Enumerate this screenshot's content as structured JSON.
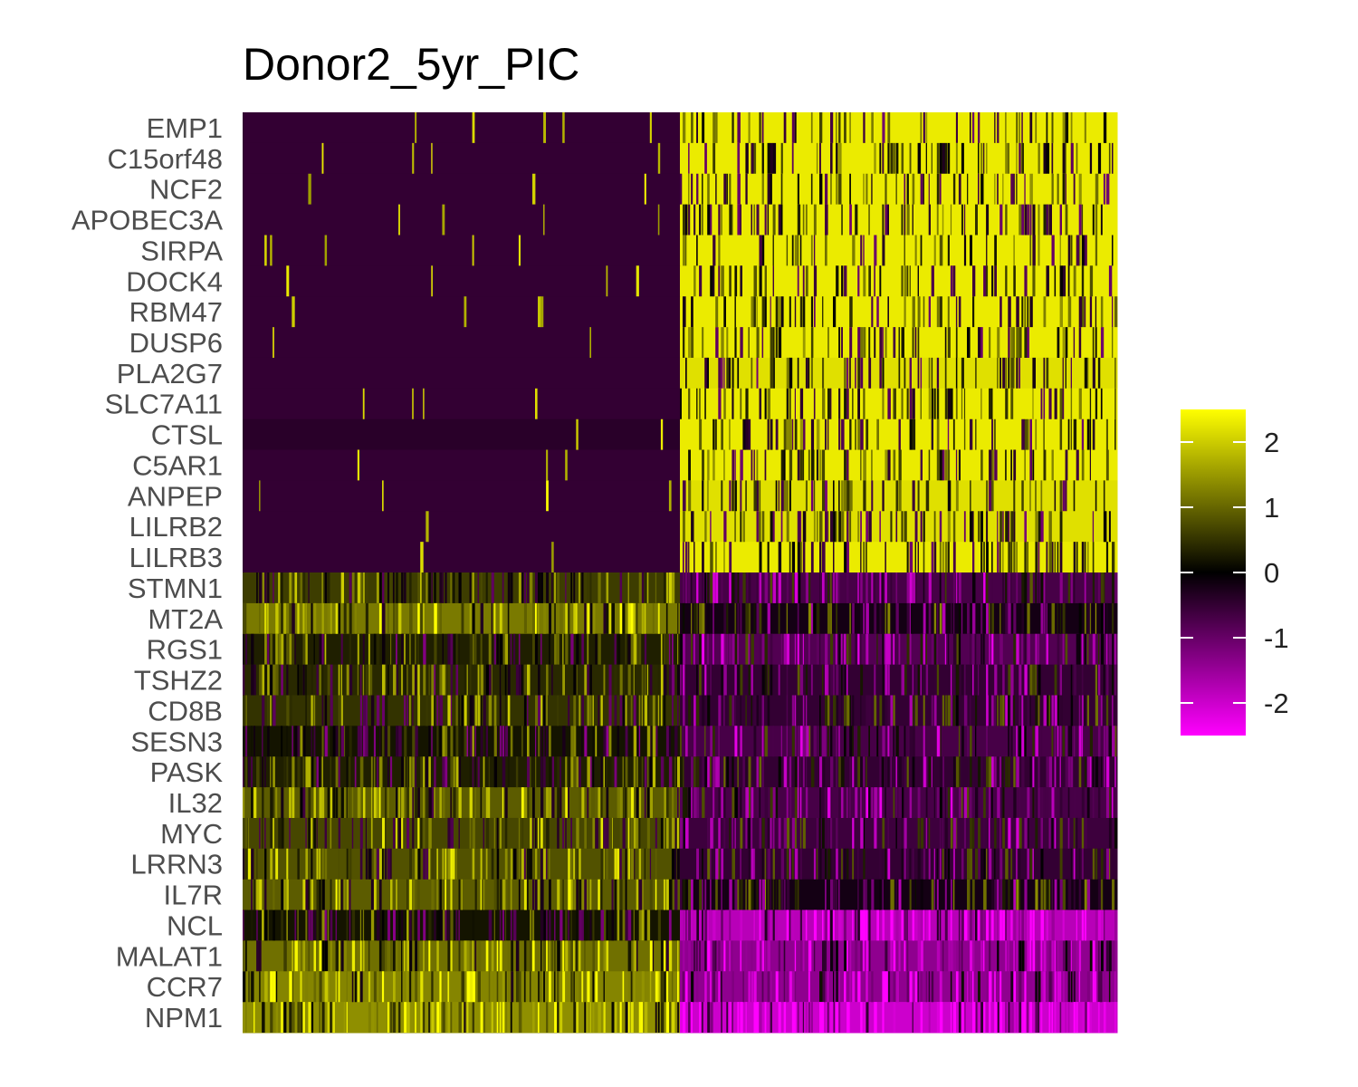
{
  "chart_data": {
    "type": "heatmap",
    "title": "Donor2_5yr_PIC",
    "xlabel": "",
    "ylabel": "",
    "genes": [
      "EMP1",
      "C15orf48",
      "NCF2",
      "APOBEC3A",
      "SIRPA",
      "DOCK4",
      "RBM47",
      "DUSP6",
      "PLA2G7",
      "SLC7A11",
      "CTSL",
      "C5AR1",
      "ANPEP",
      "LILRB2",
      "LILRB3",
      "STMN1",
      "MT2A",
      "RGS1",
      "TSHZ2",
      "CD8B",
      "SESN3",
      "PASK",
      "IL32",
      "MYC",
      "LRRN3",
      "IL7R",
      "NCL",
      "MALAT1",
      "CCR7",
      "NPM1"
    ],
    "cell_groups": [
      {
        "fraction": 0.5
      },
      {
        "fraction": 0.5
      }
    ],
    "group_means": [
      [
        -0.5,
        2.3
      ],
      [
        -0.5,
        2.3
      ],
      [
        -0.5,
        2.3
      ],
      [
        -0.5,
        2.3
      ],
      [
        -0.5,
        2.3
      ],
      [
        -0.5,
        2.3
      ],
      [
        -0.5,
        2.3
      ],
      [
        -0.5,
        2.3
      ],
      [
        -0.5,
        2.2
      ],
      [
        -0.5,
        2.3
      ],
      [
        -0.4,
        2.3
      ],
      [
        -0.5,
        2.3
      ],
      [
        -0.5,
        2.2
      ],
      [
        -0.5,
        2.2
      ],
      [
        -0.5,
        2.3
      ],
      [
        0.6,
        -0.7
      ],
      [
        1.2,
        -0.2
      ],
      [
        0.3,
        -0.8
      ],
      [
        0.4,
        -0.5
      ],
      [
        0.5,
        -0.5
      ],
      [
        0.2,
        -0.7
      ],
      [
        0.3,
        -0.5
      ],
      [
        0.9,
        -0.7
      ],
      [
        0.7,
        -0.6
      ],
      [
        0.8,
        -0.5
      ],
      [
        0.9,
        -0.2
      ],
      [
        0.2,
        -1.8
      ],
      [
        1.1,
        -1.4
      ],
      [
        1.3,
        -1.4
      ],
      [
        1.4,
        -2.0
      ]
    ],
    "legend": {
      "position": "right",
      "ticks": [
        2,
        1,
        0,
        -1,
        -2
      ],
      "tick_labels": [
        "2",
        "1",
        "0",
        "-1",
        "-2"
      ],
      "range": [
        -2.5,
        2.5
      ],
      "colors": {
        "low": "#FF00FF",
        "mid": "#000000",
        "high": "#FFFF00"
      }
    },
    "grid": false
  }
}
